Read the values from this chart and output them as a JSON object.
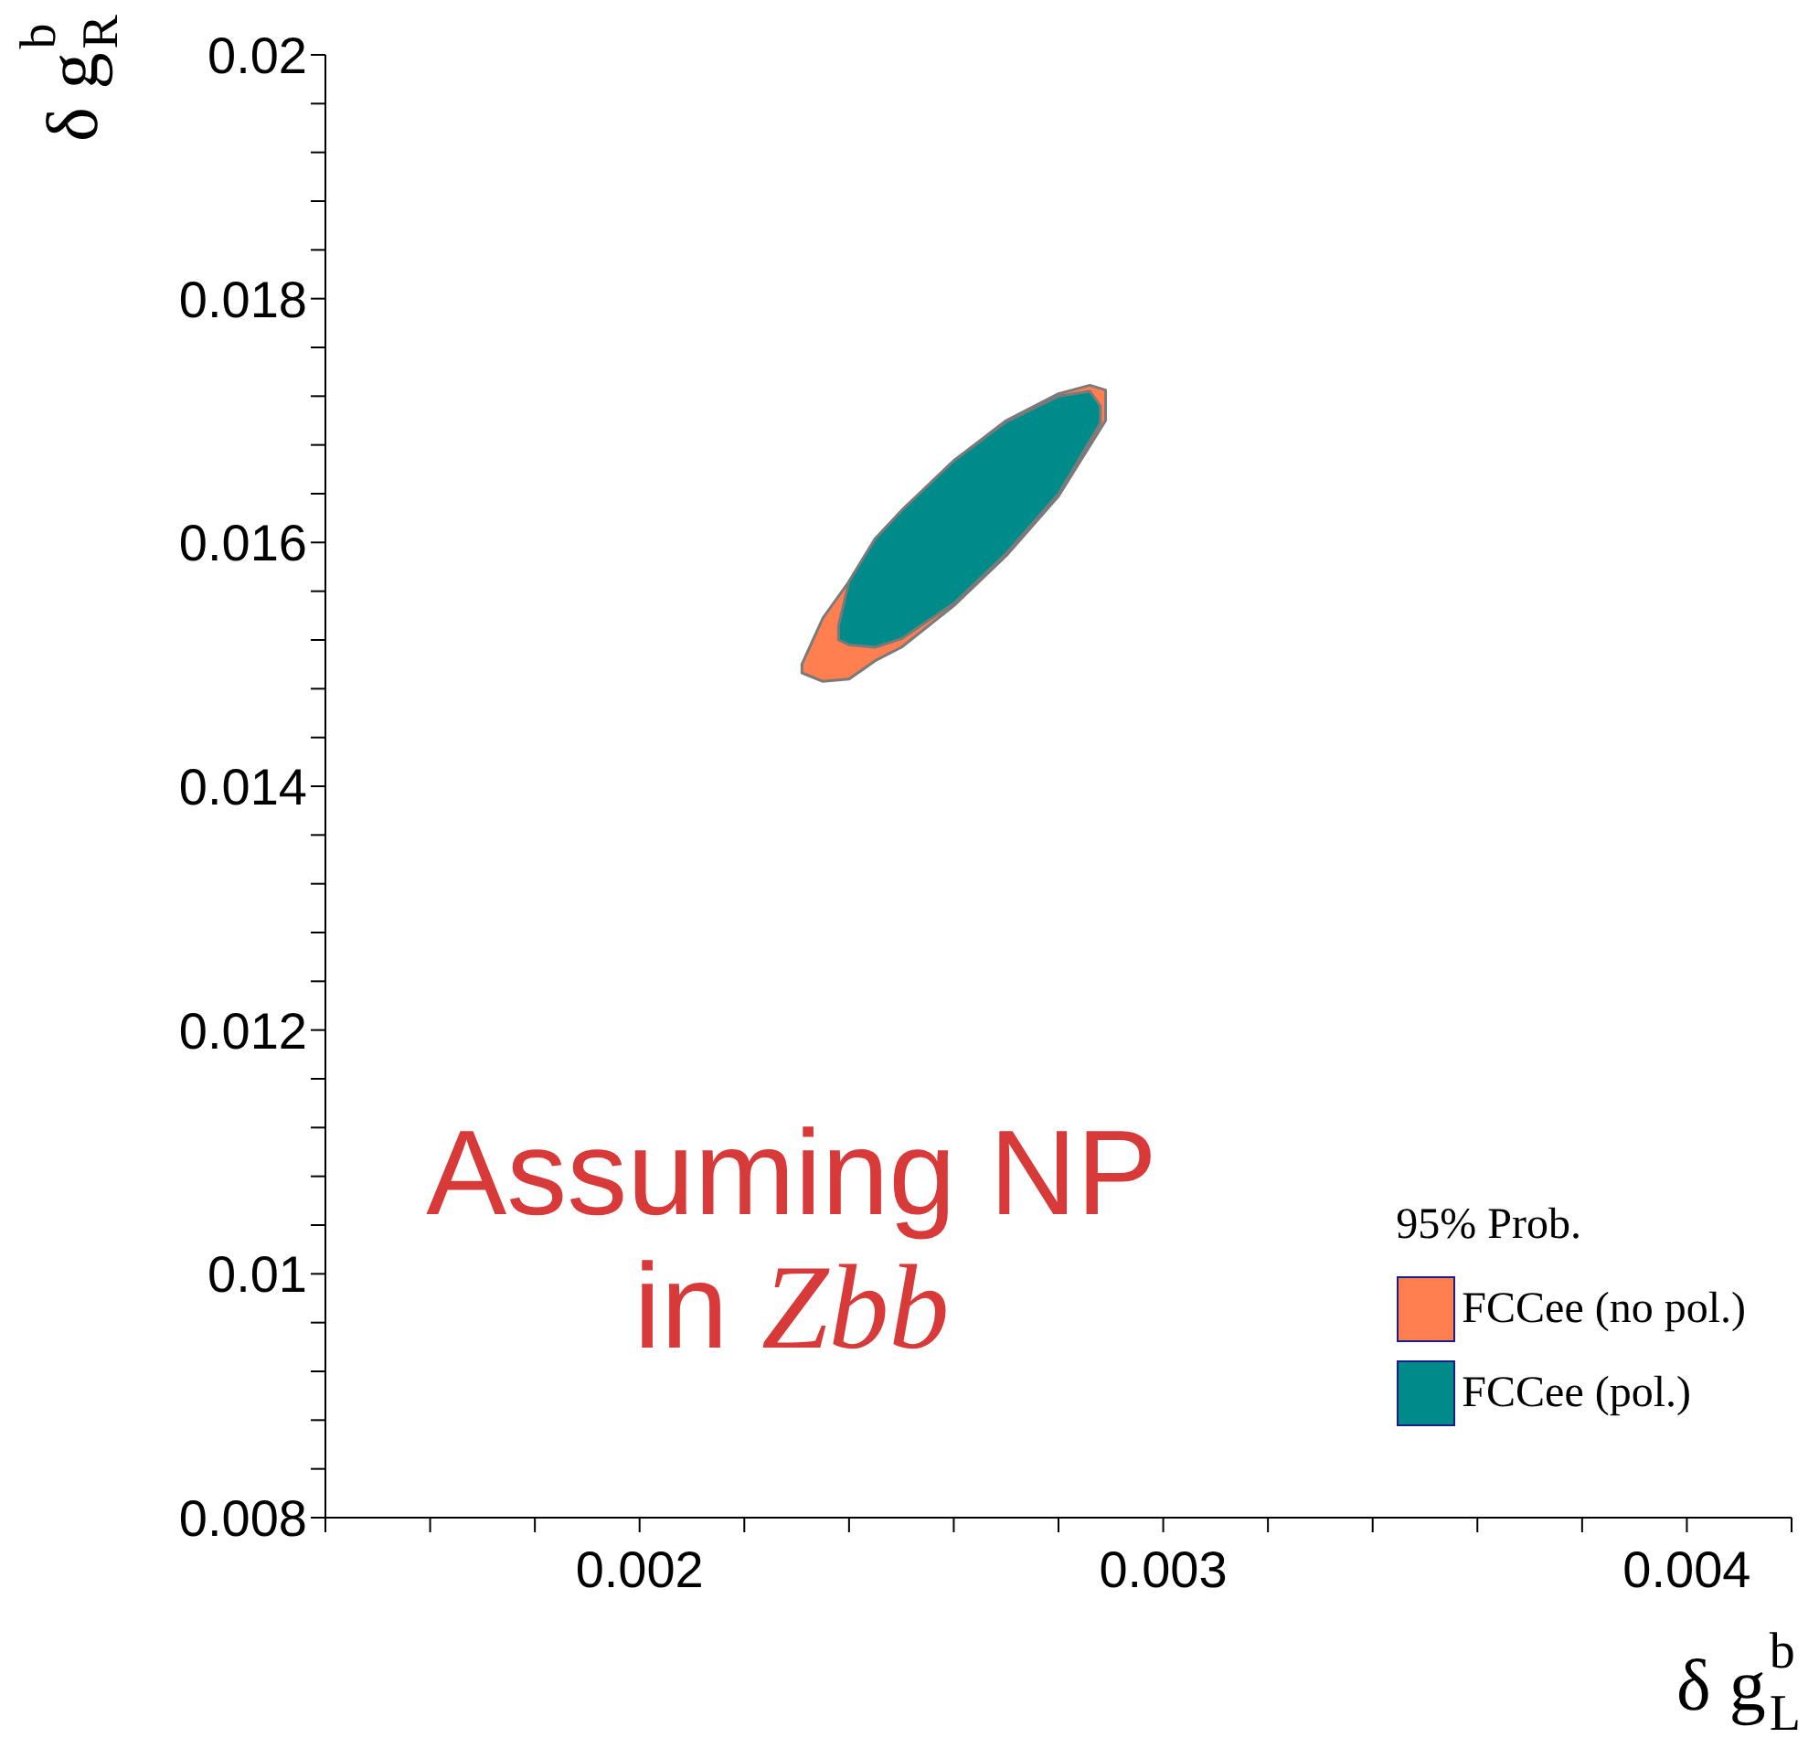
{
  "chart_data": {
    "type": "area",
    "xlabel": "δ g$^{b}$$_{L}$",
    "ylabel": "δ g$^{b}$$_{R}$",
    "legend_title": "95% Prob.",
    "legend": "bottom right",
    "xlim": [
      0.0014,
      0.0042
    ],
    "ylim": [
      0.008,
      0.02
    ],
    "xticks": [
      {
        "value": 0.0014,
        "label": null
      },
      {
        "value": 0.0016,
        "label": null
      },
      {
        "value": 0.0018,
        "label": null
      },
      0.002,
      {
        "value": 0.0022,
        "label": null
      },
      {
        "value": 0.0024,
        "label": null
      },
      {
        "value": 0.0026,
        "label": null
      },
      {
        "value": 0.0028,
        "label": null
      },
      0.003,
      {
        "value": 0.0032,
        "label": null
      },
      {
        "value": 0.0034,
        "label": null
      },
      {
        "value": 0.0036,
        "label": null
      },
      {
        "value": 0.0038,
        "label": null
      },
      0.004,
      {
        "value": 0.0042,
        "label": null
      }
    ],
    "yticks": [
      0.008,
      {
        "value": 0.0084,
        "label": null
      },
      {
        "value": 0.0088,
        "label": null
      },
      {
        "value": 0.0092,
        "label": null
      },
      {
        "value": 0.0096,
        "label": null
      },
      0.01,
      {
        "value": 0.0104,
        "label": null
      },
      {
        "value": 0.0108,
        "label": null
      },
      {
        "value": 0.0112,
        "label": null
      },
      {
        "value": 0.0116,
        "label": null
      },
      0.012,
      {
        "value": 0.0124,
        "label": null
      },
      {
        "value": 0.0128,
        "label": null
      },
      {
        "value": 0.0132,
        "label": null
      },
      {
        "value": 0.0136,
        "label": null
      },
      0.014,
      {
        "value": 0.0144,
        "label": null
      },
      {
        "value": 0.0148,
        "label": null
      },
      {
        "value": 0.0152,
        "label": null
      },
      {
        "value": 0.0156,
        "label": null
      },
      0.016,
      {
        "value": 0.0164,
        "label": null
      },
      {
        "value": 0.0168,
        "label": null
      },
      {
        "value": 0.0172,
        "label": null
      },
      {
        "value": 0.0176,
        "label": null
      },
      0.018,
      {
        "value": 0.0184,
        "label": null
      },
      {
        "value": 0.0188,
        "label": null
      },
      {
        "value": 0.0192,
        "label": null
      },
      {
        "value": 0.0196,
        "label": null
      },
      0.02
    ],
    "annotations": [
      "Assuming NP in Zbb"
    ],
    "series": [
      {
        "name": "FCCee (no pol.)",
        "color": "#ff7f50",
        "x": [
          0.00231,
          0.00235,
          0.0024,
          0.00245,
          0.0025,
          0.0026,
          0.0027,
          0.0028,
          0.00286,
          0.00289,
          0.00289,
          0.0028,
          0.0027,
          0.0026,
          0.0025,
          0.00245,
          0.0024,
          0.00235,
          0.00231
        ],
        "values": [
          0.015,
          0.01538,
          0.01568,
          0.01603,
          0.01626,
          0.01667,
          0.017,
          0.01722,
          0.01729,
          0.01725,
          0.017,
          0.01638,
          0.01589,
          0.01548,
          0.01514,
          0.01503,
          0.01488,
          0.01486,
          0.01493
        ]
      },
      {
        "name": "FCCee (pol.)",
        "color": "#008b8b",
        "x": [
          0.00238,
          0.0024,
          0.00245,
          0.0025,
          0.0026,
          0.0027,
          0.0028,
          0.00286,
          0.00288,
          0.00288,
          0.0028,
          0.0027,
          0.0026,
          0.0025,
          0.00245,
          0.0024,
          0.00238
        ],
        "values": [
          0.01532,
          0.01568,
          0.01603,
          0.01626,
          0.01667,
          0.01699,
          0.0172,
          0.01724,
          0.01712,
          0.01698,
          0.0164,
          0.01591,
          0.0155,
          0.01521,
          0.01514,
          0.01516,
          0.0152
        ]
      }
    ]
  }
}
